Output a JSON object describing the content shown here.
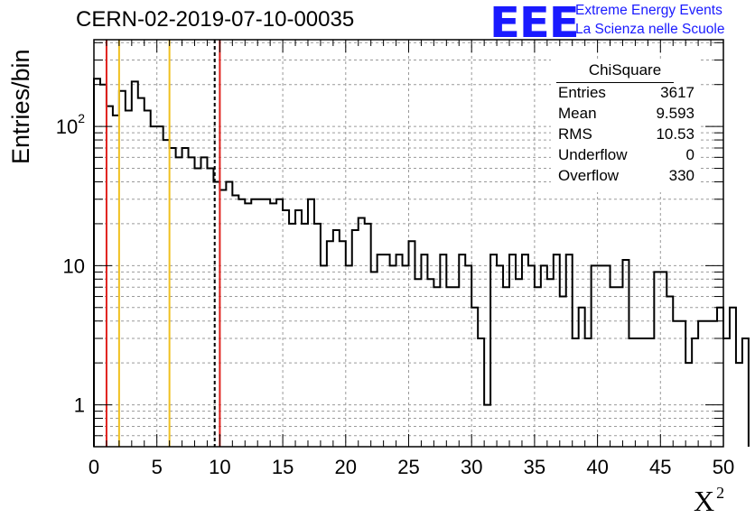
{
  "header": {
    "title": "CERN-02-2019-07-10-00035",
    "logo_text": "EEE",
    "logo_line1": "Extreme Energy Events",
    "logo_line2": "La Scienza nelle Scuole"
  },
  "stats": {
    "title": "ChiSquare",
    "rows": [
      {
        "label": "Entries",
        "value": "3617"
      },
      {
        "label": "Mean",
        "value": "9.593"
      },
      {
        "label": "RMS",
        "value": "10.53"
      },
      {
        "label": "Underflow",
        "value": "0"
      },
      {
        "label": "Overflow",
        "value": "330"
      }
    ]
  },
  "chart_data": {
    "type": "histogram",
    "xlabel": "X",
    "xlabel_superscript": "2",
    "ylabel": "Entries/bin",
    "xlim": [
      0,
      50
    ],
    "ylim": [
      0.5,
      420
    ],
    "y_scale": "log",
    "grid": true,
    "bin_width": 0.5,
    "x_ticks": [
      0,
      5,
      10,
      15,
      20,
      25,
      30,
      35,
      40,
      45,
      50
    ],
    "x_tick_labels": [
      "0",
      "5",
      "10",
      "15",
      "20",
      "25",
      "30",
      "35",
      "40",
      "45",
      "50"
    ],
    "y_ticks": [
      1,
      10,
      100
    ],
    "y_tick_labels": [
      {
        "base": "1",
        "exp": ""
      },
      {
        "base": "10",
        "exp": ""
      },
      {
        "base": "10",
        "exp": "2"
      }
    ],
    "values": [
      220,
      200,
      140,
      120,
      180,
      130,
      210,
      160,
      130,
      100,
      100,
      80,
      70,
      60,
      70,
      60,
      50,
      60,
      50,
      40,
      35,
      40,
      32,
      30,
      28,
      30,
      30,
      30,
      28,
      30,
      25,
      20,
      25,
      20,
      30,
      20,
      10,
      15,
      18,
      15,
      10,
      18,
      22,
      20,
      9,
      12,
      12,
      10,
      12,
      10,
      15,
      8,
      12,
      8,
      7,
      12,
      7,
      7,
      12,
      10,
      5,
      3,
      1,
      12,
      10,
      7,
      12,
      8,
      12,
      10,
      7,
      10,
      8,
      12,
      6,
      12,
      3,
      5,
      3,
      10,
      10,
      10,
      7,
      7,
      11,
      3,
      3,
      3,
      3,
      9,
      9,
      6,
      4,
      4,
      2,
      3,
      4,
      4,
      4,
      5,
      3,
      5,
      2,
      3
    ],
    "vertical_lines": [
      {
        "x": 1.0,
        "color": "#e0201c",
        "style": "solid"
      },
      {
        "x": 2.0,
        "color": "#f0c020",
        "style": "solid"
      },
      {
        "x": 6.0,
        "color": "#f0c020",
        "style": "solid"
      },
      {
        "x": 9.593,
        "color": "#000000",
        "style": "dashed"
      },
      {
        "x": 10.0,
        "color": "#e0201c",
        "style": "solid"
      }
    ]
  }
}
